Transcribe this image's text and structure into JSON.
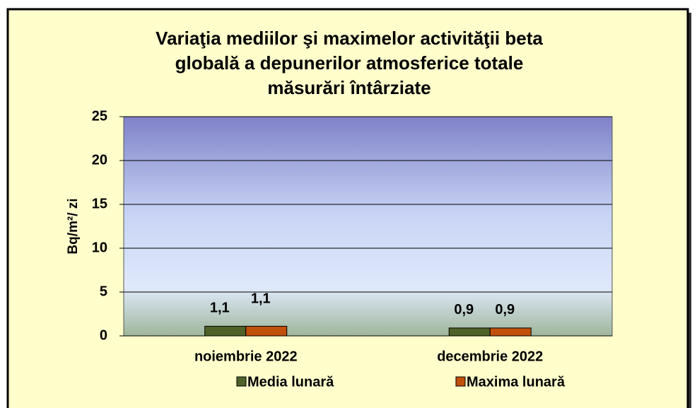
{
  "chart_data": {
    "type": "bar",
    "title": "Variaţia mediilor şi maximelor activităţii beta\nglobală a depunerilor atmosferice totale\nmăsurări întârziate",
    "y_label": "Bq/m²/ zi",
    "categories": [
      "noiembrie 2022",
      "decembrie 2022"
    ],
    "series": [
      {
        "name": "Media lunară",
        "color": "#4f6228",
        "values": [
          1.1,
          0.9
        ],
        "value_labels": [
          "1,1",
          "0,9"
        ]
      },
      {
        "name": "Maxima lunară",
        "color": "#c0500a",
        "values": [
          1.1,
          0.9
        ],
        "value_labels": [
          "1,1",
          "0,9"
        ]
      }
    ],
    "ylim": [
      0,
      25
    ],
    "yticks": [
      0,
      5,
      10,
      15,
      20,
      25
    ],
    "grid": true,
    "legend": "bottom"
  }
}
